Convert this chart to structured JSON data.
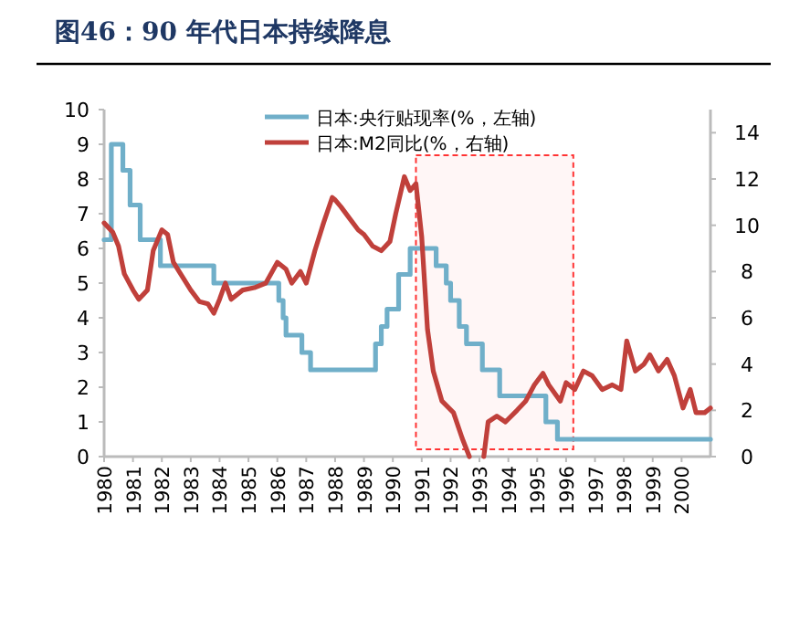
{
  "chart_data": {
    "type": "line",
    "title": "图46：90 年代日本持续降息",
    "xlim": [
      1980,
      2001
    ],
    "xticks": [
      1980,
      1981,
      1982,
      1983,
      1984,
      1985,
      1986,
      1987,
      1988,
      1989,
      1990,
      1991,
      1992,
      1993,
      1994,
      1995,
      1996,
      1997,
      1998,
      1999,
      2000
    ],
    "ylim": [
      0,
      10
    ],
    "yticks": [
      0,
      1,
      2,
      3,
      4,
      5,
      6,
      7,
      8,
      9,
      10
    ],
    "y2lim": [
      0,
      15
    ],
    "y2ticks": [
      0,
      2,
      4,
      6,
      8,
      10,
      12,
      14
    ],
    "legend": "top right",
    "grid": false,
    "marker": "none",
    "line_style": "solid",
    "bands": [
      {
        "axis": "x",
        "from": 1990.8,
        "to": 1996.25,
        "color": "#ff3333"
      }
    ],
    "series": [
      {
        "name": "日本:央行贴现率(%，左轴)",
        "type": "step",
        "color": "#70afc9",
        "x": [
          1980,
          1980.25,
          1980.65,
          1980.9,
          1981.25,
          1981.95,
          1983.8,
          1986.05,
          1986.2,
          1986.3,
          1986.85,
          1987.15,
          1989.4,
          1989.6,
          1989.8,
          1990.2,
          1990.6,
          1991.5,
          1991.85,
          1992.0,
          1992.3,
          1992.55,
          1993.1,
          1993.7,
          1995.3,
          1995.7,
          2001
        ],
        "values": [
          6.25,
          9,
          8.25,
          7.25,
          6.25,
          5.5,
          5,
          4.5,
          4,
          3.5,
          3,
          2.5,
          3.25,
          3.75,
          4.25,
          5.25,
          6,
          5.5,
          5,
          4.5,
          3.75,
          3.25,
          2.5,
          1.75,
          1,
          0.5,
          0.5
        ]
      },
      {
        "name": "日本:M2同比(%，右轴)",
        "type": "line",
        "axis": "y2",
        "color": "#c0403b",
        "x": [
          1980,
          1980.3,
          1980.5,
          1980.7,
          1981,
          1981.2,
          1981.5,
          1981.7,
          1982,
          1982.2,
          1982.4,
          1982.6,
          1983,
          1983.3,
          1983.6,
          1983.8,
          1984,
          1984.2,
          1984.4,
          1984.8,
          1985.2,
          1985.6,
          1986,
          1986.3,
          1986.5,
          1986.8,
          1987,
          1987.3,
          1987.6,
          1987.9,
          1988,
          1988.2,
          1988.5,
          1988.8,
          1989,
          1989.3,
          1989.6,
          1989.9,
          1990.1,
          1990.4,
          1990.6,
          1990.8,
          1991,
          1991.2,
          1991.4,
          1991.7,
          1992.1,
          1992.4,
          1992.65,
          1992.9,
          1993.15,
          1993.3,
          1993.6,
          1993.9,
          1994.3,
          1994.6,
          1994.9,
          1995.2,
          1995.4,
          1995.8,
          1996,
          1996.3,
          1996.6,
          1996.9,
          1997.25,
          1997.6,
          1997.9,
          1998.1,
          1998.4,
          1998.7,
          1998.9,
          1999.2,
          1999.5,
          1999.75,
          2000.05,
          2000.3,
          2000.5,
          2000.8,
          2001
        ],
        "values": [
          10.1,
          9.7,
          9.1,
          7.9,
          7.2,
          6.8,
          7.2,
          8.9,
          9.8,
          9.6,
          8.4,
          8.0,
          7.2,
          6.7,
          6.6,
          6.2,
          6.8,
          7.5,
          6.8,
          7.2,
          7.3,
          7.5,
          8.4,
          8.1,
          7.5,
          8.0,
          7.5,
          8.9,
          10.1,
          11.2,
          11.1,
          10.8,
          10.3,
          9.8,
          9.6,
          9.1,
          8.9,
          9.3,
          10.5,
          12.1,
          11.5,
          11.8,
          9.5,
          5.5,
          3.7,
          2.4,
          1.9,
          0.8,
          0,
          null,
          0,
          1.5,
          1.75,
          1.5,
          2.0,
          2.4,
          3.1,
          3.6,
          3.1,
          2.4,
          3.2,
          2.9,
          3.7,
          3.5,
          2.9,
          3.1,
          2.9,
          5.0,
          3.7,
          4.0,
          4.4,
          3.7,
          4.2,
          3.5,
          2.1,
          2.9,
          1.9,
          1.9,
          2.1
        ]
      }
    ]
  }
}
